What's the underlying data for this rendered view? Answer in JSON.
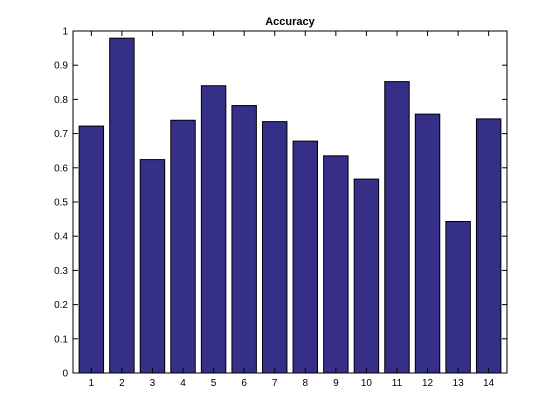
{
  "chart_data": {
    "type": "bar",
    "title": "Accuracy",
    "xlabel": "",
    "ylabel": "",
    "categories": [
      "1",
      "2",
      "3",
      "4",
      "5",
      "6",
      "7",
      "8",
      "9",
      "10",
      "11",
      "12",
      "13",
      "14"
    ],
    "values": [
      0.722,
      0.979,
      0.624,
      0.739,
      0.84,
      0.782,
      0.735,
      0.678,
      0.635,
      0.567,
      0.852,
      0.757,
      0.443,
      0.743
    ],
    "ylim": [
      0,
      1
    ],
    "xlim": [
      0.4,
      14.6
    ],
    "yticks": [
      "0",
      "0.1",
      "0.2",
      "0.3",
      "0.4",
      "0.5",
      "0.6",
      "0.7",
      "0.8",
      "0.9",
      "1"
    ],
    "grid": false,
    "bar_color": "#352f88",
    "bar_stroke": "#000000"
  }
}
